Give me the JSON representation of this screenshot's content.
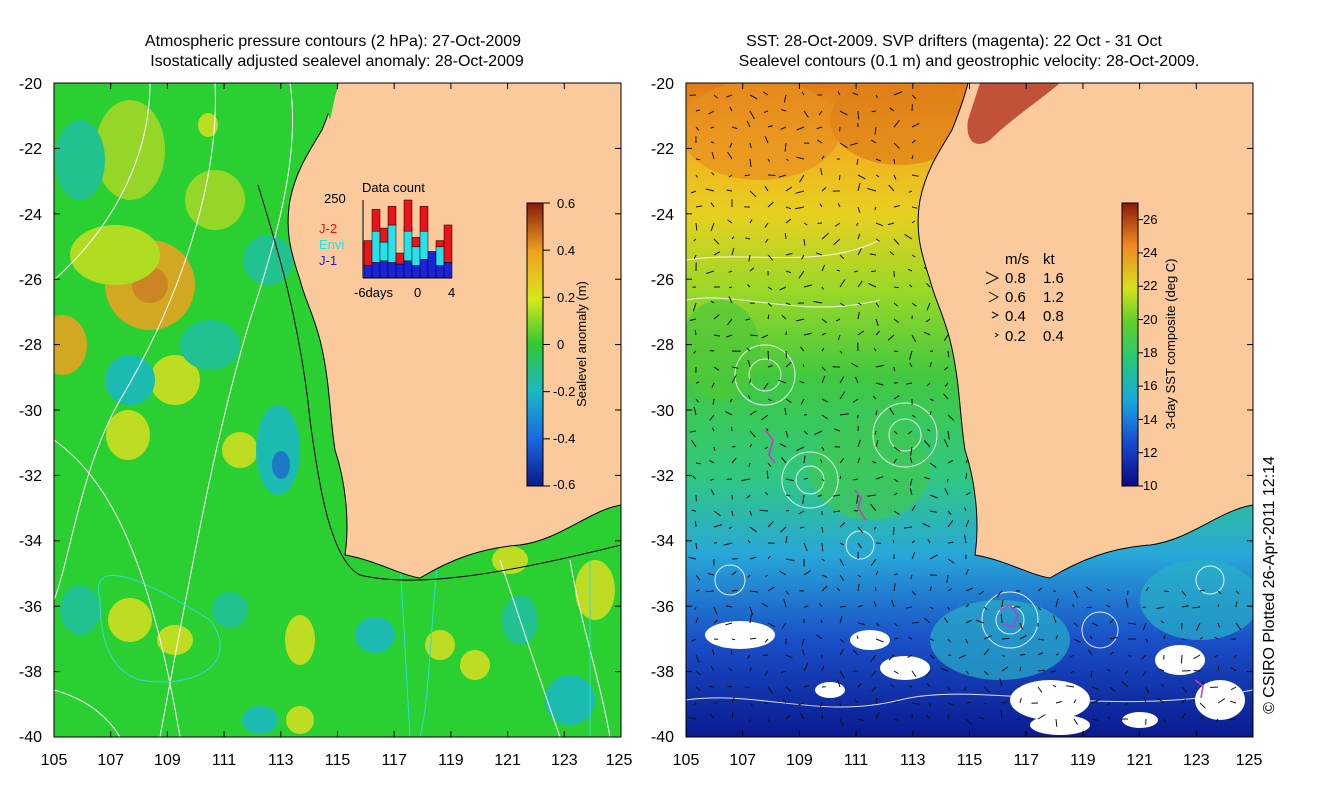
{
  "left_panel": {
    "title_line1": "Atmospheric pressure contours (2 hPa): 27-Oct-2009",
    "title_line2": "Isostatically adjusted sealevel anomaly: 28-Oct-2009",
    "x_ticks": [
      "105",
      "107",
      "109",
      "111",
      "113",
      "115",
      "117",
      "119",
      "121",
      "123",
      "125"
    ],
    "y_ticks": [
      "-20",
      "-22",
      "-24",
      "-26",
      "-28",
      "-30",
      "-32",
      "-34",
      "-36",
      "-38",
      "-40"
    ],
    "colorbar": {
      "label": "Sealevel anomaly (m)",
      "ticks": [
        "0.6",
        "0.4",
        "0.2",
        "0",
        "-0.2",
        "-0.4",
        "-0.6"
      ],
      "range": [
        -0.6,
        0.6
      ]
    },
    "inset": {
      "title": "Data count",
      "y_max_label": "250",
      "legend": [
        {
          "name": "J-2",
          "color": "#e8141a"
        },
        {
          "name": "Envi",
          "color": "#28e0e8"
        },
        {
          "name": "J-1",
          "color": "#1a22d8"
        }
      ],
      "x_labels": [
        "-6days",
        "0",
        "4"
      ],
      "bars": [
        {
          "j1": 40,
          "envi": 0,
          "j2": 80
        },
        {
          "j1": 50,
          "envi": 100,
          "j2": 70
        },
        {
          "j1": 55,
          "envi": 60,
          "j2": 45
        },
        {
          "j1": 50,
          "envi": 120,
          "j2": 60
        },
        {
          "j1": 45,
          "envi": 0,
          "j2": 35
        },
        {
          "j1": 55,
          "envi": 110,
          "j2": 100
        },
        {
          "j1": 40,
          "envi": 60,
          "j2": 30
        },
        {
          "j1": 60,
          "envi": 90,
          "j2": 80
        },
        {
          "j1": 85,
          "envi": 0,
          "j2": 0
        },
        {
          "j1": 40,
          "envi": 60,
          "j2": 20
        },
        {
          "j1": 50,
          "envi": 0,
          "j2": 120
        }
      ]
    }
  },
  "right_panel": {
    "title_line1": "SST: 28-Oct-2009. SVP drifters (magenta): 22 Oct - 31 Oct",
    "title_line2": "Sealevel contours (0.1 m) and geostrophic velocity: 28-Oct-2009.",
    "x_ticks": [
      "105",
      "107",
      "109",
      "111",
      "113",
      "115",
      "117",
      "119",
      "121",
      "123",
      "125"
    ],
    "y_ticks": [
      "-20",
      "-22",
      "-24",
      "-26",
      "-28",
      "-30",
      "-32",
      "-34",
      "-36",
      "-38",
      "-40"
    ],
    "colorbar": {
      "label": "3-day SST composite (deg C)",
      "ticks": [
        "26",
        "24",
        "22",
        "20",
        "18",
        "16",
        "14",
        "12",
        "10"
      ],
      "range": [
        10,
        27
      ]
    },
    "velocity_legend": {
      "header_ms": "m/s",
      "header_kt": "kt",
      "rows": [
        {
          "ms": "0.8",
          "kt": "1.6"
        },
        {
          "ms": "0.6",
          "kt": "1.2"
        },
        {
          "ms": "0.4",
          "kt": "0.8"
        },
        {
          "ms": "0.2",
          "kt": "0.4"
        }
      ]
    }
  },
  "credit": "© CSIRO Plotted 26-Apr-2011 12:14",
  "colors": {
    "land": "#fac99c",
    "ocean_left": "#2ad032",
    "coastline": "#000000",
    "contour_white": "#ffffff",
    "contour_cyan": "#35d8dc",
    "drifter": "#cc33cc"
  }
}
